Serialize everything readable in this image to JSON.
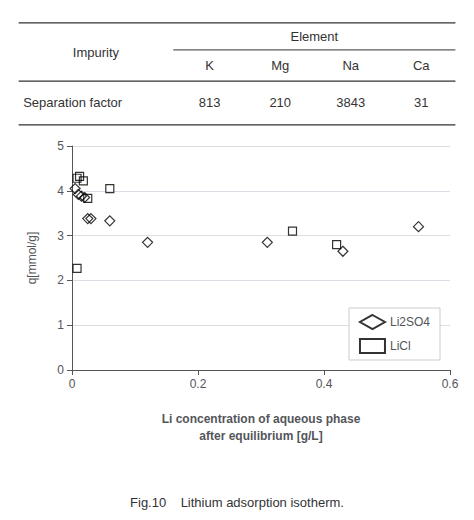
{
  "chart_data": {
    "type": "scatter",
    "table": {
      "row_group": "Impurity",
      "col_group": "Element",
      "columns": [
        "K",
        "Mg",
        "Na",
        "Ca"
      ],
      "row_label": "Separation factor",
      "values": [
        813,
        210,
        3843,
        31
      ]
    },
    "series": [
      {
        "name": "Li2SO4",
        "color": "#000000",
        "marker": "diamond",
        "x": [
          0.005,
          0.01,
          0.015,
          0.02,
          0.025,
          0.03,
          0.06,
          0.12,
          0.31,
          0.43,
          0.55
        ],
        "values": [
          4.05,
          3.92,
          3.88,
          3.85,
          3.38,
          3.38,
          3.33,
          2.85,
          2.85,
          2.65,
          3.2
        ]
      },
      {
        "name": "LiCl",
        "color": "#000000",
        "marker": "square",
        "x": [
          0.008,
          0.012,
          0.018,
          0.025,
          0.06,
          0.35,
          0.42,
          0.008
        ],
        "values": [
          4.28,
          4.32,
          4.22,
          3.83,
          4.05,
          3.1,
          2.8,
          2.27
        ]
      }
    ],
    "xlabel": "Li concentration of aqueous phase\nafter equilibrium [g/L]",
    "ylabel": "q[mmol/g]",
    "xlim": [
      0,
      0.6
    ],
    "ylim": [
      0,
      5
    ],
    "xticks": [
      0,
      0.2,
      0.4,
      0.6
    ],
    "yticks": [
      0,
      1,
      2,
      3,
      4,
      5
    ],
    "grid": true,
    "legend": "lower right",
    "caption": "Fig.10    Lithium adsorption isotherm."
  }
}
